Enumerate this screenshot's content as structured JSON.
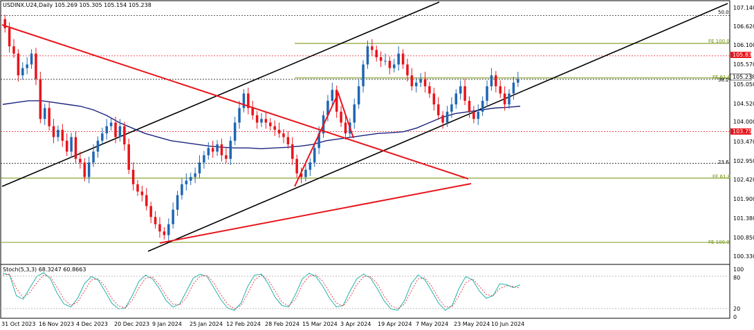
{
  "window": {
    "symbol_line": "USDINX.U24,Daily  105.269 105.305 105.154 105.238",
    "indicator_label": "Stoch(5,3,3) 68.3247 60.8663"
  },
  "colors": {
    "bull": "#1f66b3",
    "bear": "#e8141b",
    "ma": "#1a237e",
    "trend_red": "#e8141b",
    "channel": "#000000",
    "fib_olive": "#6b8e00",
    "level_red": "#e8141b",
    "stoch_main": "#20b2aa",
    "stoch_signal": "#e8141b"
  },
  "price_axis": {
    "ticks": [
      "107.140",
      "106.620",
      "106.100",
      "105.570",
      "105.050",
      "104.520",
      "104.000",
      "103.470",
      "102.950",
      "102.420",
      "101.900",
      "101.380",
      "100.850",
      "100.330"
    ],
    "current_price": "105.238",
    "level_high": "105.838",
    "level_low": "103.754"
  },
  "level_labels": {
    "fe100_top": "FE 100.0",
    "fe618_mid": "FE 61.8",
    "fib_382": "38.2",
    "fib_50": "50.0",
    "fib_236": "23.6",
    "fe618_low": "FE 61.8",
    "fe100_low": "FE 100.0"
  },
  "stoch_axis": {
    "ticks": [
      "100",
      "80",
      "20",
      "0"
    ]
  },
  "time_axis": {
    "labels": [
      "31 Oct 2023",
      "16 Nov 2023",
      "4 Dec 2023",
      "20 Dec 2023",
      "9 Jan 2024",
      "25 Jan 2024",
      "12 Feb 2024",
      "28 Feb 2024",
      "15 Mar 2024",
      "3 Apr 2024",
      "19 Apr 2024",
      "7 May 2024",
      "23 May 2024",
      "10 Jun 2024"
    ]
  },
  "chart_data": {
    "type": "candlestick",
    "symbol": "USDINX.U24",
    "timeframe": "Daily",
    "ylim": [
      100.15,
      107.3
    ],
    "last_ohlc": {
      "open": 105.269,
      "high": 105.305,
      "low": 105.154,
      "close": 105.238
    },
    "closes": [
      106.6,
      106.1,
      105.9,
      105.3,
      105.5,
      105.6,
      105.9,
      105.2,
      104.1,
      104.4,
      103.9,
      103.6,
      103.8,
      103.5,
      103.2,
      103.6,
      103.0,
      102.9,
      102.5,
      102.9,
      103.2,
      103.5,
      103.7,
      103.9,
      104.0,
      103.6,
      103.9,
      103.4,
      102.7,
      102.3,
      102.1,
      102.0,
      101.7,
      101.4,
      101.2,
      101.0,
      100.9,
      101.2,
      101.6,
      102.0,
      102.3,
      102.4,
      102.5,
      102.6,
      102.9,
      103.1,
      103.3,
      103.2,
      103.4,
      103.1,
      103.0,
      103.5,
      104.0,
      104.4,
      104.8,
      104.4,
      104.2,
      104.0,
      104.1,
      104.0,
      103.9,
      103.8,
      103.7,
      103.6,
      103.4,
      103.0,
      102.6,
      102.5,
      102.7,
      102.9,
      103.3,
      103.7,
      104.2,
      104.6,
      104.9,
      104.3,
      104.0,
      103.7,
      104.0,
      104.5,
      105.0,
      105.6,
      106.1,
      106.0,
      105.8,
      105.7,
      105.7,
      105.5,
      105.6,
      105.9,
      105.6,
      105.3,
      105.0,
      105.1,
      105.2,
      105.0,
      104.8,
      104.5,
      104.2,
      104.0,
      104.3,
      104.5,
      104.8,
      105.0,
      104.6,
      104.3,
      104.1,
      104.3,
      104.6,
      105.0,
      105.3,
      105.0,
      104.8,
      104.5,
      104.8,
      105.1,
      105.2
    ],
    "moving_average": [
      104.5,
      104.55,
      104.6,
      104.6,
      104.55,
      104.5,
      104.45,
      104.35,
      104.2,
      104.0,
      103.85,
      103.7,
      103.6,
      103.5,
      103.45,
      103.4,
      103.35,
      103.32,
      103.3,
      103.3,
      103.28,
      103.3,
      103.32,
      103.35,
      103.4,
      103.5,
      103.55,
      103.6,
      103.65,
      103.7,
      103.72,
      103.75,
      103.85,
      104.0,
      104.15,
      104.25,
      104.3,
      104.35,
      104.4,
      104.42,
      104.45
    ],
    "levels": {
      "fe100_top": 106.18,
      "level_high": 105.838,
      "fe618_mid": 105.23,
      "fib_382": 105.19,
      "fib_50": 106.95,
      "level_low": 103.754,
      "fib_236": 102.88,
      "fe618_low": 102.47,
      "fe100_low": 100.7
    },
    "stochastic": {
      "main": [
        92,
        88,
        45,
        38,
        62,
        85,
        93,
        80,
        50,
        28,
        22,
        40,
        70,
        85,
        78,
        55,
        30,
        18,
        20,
        45,
        75,
        88,
        80,
        60,
        35,
        22,
        28,
        55,
        82,
        90,
        85,
        62,
        38,
        20,
        15,
        30,
        65,
        88,
        90,
        70,
        42,
        25,
        22,
        48,
        80,
        92,
        85,
        65,
        40,
        22,
        25,
        55,
        80,
        90,
        82,
        60,
        35,
        18,
        15,
        35,
        70,
        88,
        78,
        55,
        30,
        15,
        25,
        60,
        85,
        78,
        55,
        40,
        45,
        70,
        68,
        62,
        68
      ],
      "signal": [
        88,
        90,
        60,
        42,
        52,
        72,
        88,
        85,
        62,
        38,
        25,
        32,
        55,
        78,
        80,
        65,
        40,
        24,
        20,
        35,
        62,
        82,
        84,
        68,
        45,
        28,
        26,
        42,
        70,
        86,
        87,
        72,
        48,
        28,
        18,
        25,
        50,
        78,
        88,
        78,
        55,
        32,
        24,
        38,
        68,
        86,
        88,
        75,
        52,
        30,
        24,
        42,
        68,
        85,
        85,
        70,
        45,
        25,
        18,
        28,
        55,
        80,
        82,
        65,
        40,
        22,
        22,
        45,
        72,
        80,
        65,
        48,
        45,
        60,
        66,
        64,
        61
      ]
    }
  }
}
